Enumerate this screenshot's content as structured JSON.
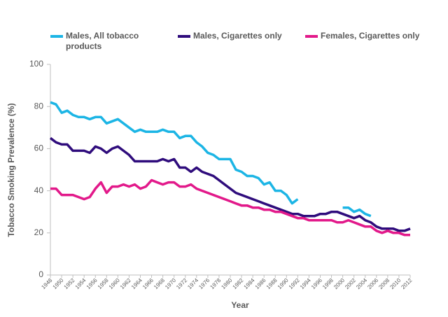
{
  "chart_data": {
    "type": "line",
    "x_label": "Year",
    "y_label": "Tobacco Smoking Prevalence (%)",
    "x": [
      1948,
      1949,
      1950,
      1951,
      1952,
      1953,
      1954,
      1955,
      1956,
      1957,
      1958,
      1959,
      1960,
      1961,
      1962,
      1963,
      1964,
      1965,
      1966,
      1967,
      1968,
      1969,
      1970,
      1971,
      1972,
      1973,
      1974,
      1975,
      1976,
      1977,
      1978,
      1979,
      1980,
      1981,
      1982,
      1983,
      1984,
      1985,
      1986,
      1987,
      1988,
      1989,
      1990,
      1991,
      1992,
      1993,
      1994,
      1995,
      1996,
      1997,
      1998,
      1999,
      2000,
      2001,
      2002,
      2003,
      2004,
      2005,
      2006,
      2007,
      2008,
      2009,
      2010,
      2011,
      2012
    ],
    "series": [
      {
        "name": "Males, All tobacco products",
        "color": "#1cb5e5",
        "values": [
          82,
          81,
          77,
          78,
          76,
          75,
          75,
          74,
          75,
          75,
          72,
          73,
          74,
          72,
          70,
          68,
          69,
          68,
          68,
          68,
          69,
          68,
          68,
          65,
          66,
          66,
          63,
          61,
          58,
          57,
          55,
          55,
          55,
          50,
          49,
          47,
          47,
          46,
          43,
          44,
          40,
          40,
          38,
          34,
          36,
          null,
          null,
          null,
          null,
          null,
          null,
          null,
          32,
          32,
          30,
          31,
          29,
          28,
          null,
          null,
          null,
          null,
          null,
          null,
          null
        ]
      },
      {
        "name": "Males, Cigarettes only",
        "color": "#2f0c7c",
        "values": [
          65,
          63,
          62,
          62,
          59,
          59,
          59,
          58,
          61,
          60,
          58,
          60,
          61,
          59,
          57,
          54,
          54,
          54,
          54,
          54,
          55,
          54,
          55,
          51,
          51,
          49,
          51,
          49,
          48,
          47,
          45,
          43,
          41,
          39,
          38,
          37,
          36,
          35,
          34,
          33,
          32,
          31,
          30,
          29,
          29,
          28,
          28,
          28,
          29,
          29,
          30,
          30,
          29,
          28,
          27,
          28,
          26,
          25,
          23,
          22,
          22,
          22,
          21,
          21,
          22
        ]
      },
      {
        "name": "Females, Cigarettes only",
        "color": "#e2198a",
        "values": [
          41,
          41,
          38,
          38,
          38,
          37,
          36,
          37,
          41,
          44,
          39,
          42,
          42,
          43,
          42,
          43,
          41,
          42,
          45,
          44,
          43,
          44,
          44,
          42,
          42,
          43,
          41,
          40,
          39,
          38,
          37,
          36,
          35,
          34,
          33,
          33,
          32,
          32,
          31,
          31,
          30,
          30,
          29,
          28,
          27,
          27,
          26,
          26,
          26,
          26,
          26,
          25,
          25,
          26,
          25,
          24,
          23,
          23,
          21,
          20,
          21,
          20,
          20,
          19,
          19
        ]
      }
    ],
    "xlim": [
      1948,
      2012
    ],
    "xticks": [
      1948,
      1950,
      1952,
      1954,
      1956,
      1958,
      1960,
      1962,
      1964,
      1966,
      1968,
      1970,
      1972,
      1974,
      1976,
      1978,
      1980,
      1982,
      1984,
      1986,
      1988,
      1990,
      1992,
      1994,
      1996,
      1998,
      2000,
      2002,
      2004,
      2006,
      2008,
      2010,
      2012
    ],
    "ylim": [
      0,
      100
    ],
    "yticks": [
      0,
      20,
      40,
      60,
      80,
      100
    ],
    "grid": false,
    "legend": "top"
  }
}
